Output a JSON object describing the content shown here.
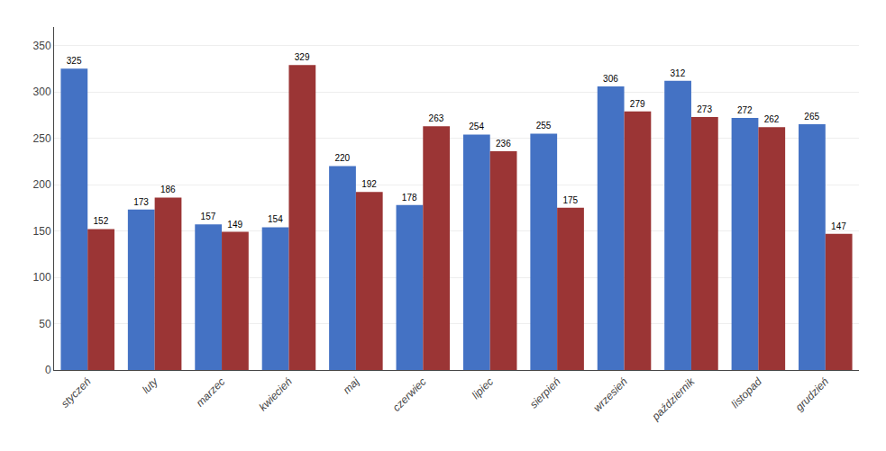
{
  "chart_data": {
    "type": "bar",
    "categories": [
      "styczeń",
      "luty",
      "marzec",
      "kwiecień",
      "maj",
      "czerwiec",
      "lipiec",
      "sierpień",
      "wrzesień",
      "październik",
      "listopad",
      "grudzień"
    ],
    "series": [
      {
        "color": "#4472C4",
        "values": [
          325,
          173,
          157,
          154,
          220,
          178,
          254,
          255,
          306,
          312,
          272,
          265
        ]
      },
      {
        "color": "#9B3535",
        "values": [
          152,
          186,
          149,
          329,
          192,
          263,
          236,
          175,
          279,
          273,
          262,
          147
        ]
      }
    ],
    "ylim": [
      0,
      370
    ],
    "yticks": [
      0,
      50,
      100,
      150,
      200,
      250,
      300,
      350
    ],
    "grid": true,
    "data_labels": true
  }
}
